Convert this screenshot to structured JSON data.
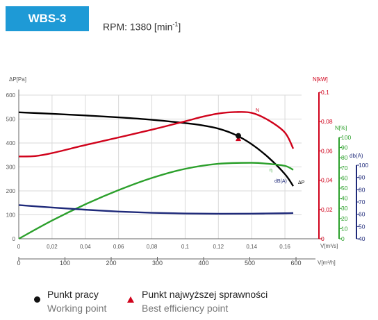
{
  "header": {
    "model": "WBS-3",
    "rpm_label": "RPM: 1380 [min",
    "rpm_sup": "-1",
    "rpm_close": "]"
  },
  "legend": {
    "working_pl": "Punkt pracy",
    "working_en": "Working point",
    "best_pl": "Punkt najwyższej sprawności",
    "best_en": "Best efficiency point"
  },
  "chart_data": {
    "type": "line",
    "x_flow_m3s": {
      "label": "V[m³/s]",
      "range": [
        0,
        0.17
      ],
      "ticks": [
        "0",
        "0,02",
        "0,04",
        "0,06",
        "0,08",
        "0,1",
        "0,12",
        "0,14",
        "0,16"
      ]
    },
    "x_flow_m3h": {
      "label": "V[m³/h]",
      "range": [
        0,
        612
      ],
      "ticks": [
        "0",
        "100",
        "200",
        "300",
        "400",
        "500",
        "600"
      ]
    },
    "axes": {
      "pressure": {
        "label": "ΔP[Pa]",
        "range": [
          0,
          600
        ],
        "ticks": [
          "0",
          "100",
          "200",
          "300",
          "400",
          "500",
          "600"
        ],
        "color": "#555555"
      },
      "power": {
        "label": "N[kW]",
        "range": [
          0,
          0.1
        ],
        "ticks": [
          "0",
          "0,02",
          "0,04",
          "0,06",
          "0,08",
          "0,1"
        ],
        "color": "#d0021b"
      },
      "efficiency": {
        "label": "N[%]",
        "range": [
          0,
          100
        ],
        "ticks": [
          "0",
          "10",
          "20",
          "30",
          "40",
          "50",
          "60",
          "70",
          "80",
          "90",
          "100"
        ],
        "color": "#2ca02c"
      },
      "noise": {
        "label": "db(A)",
        "range": [
          40,
          100
        ],
        "ticks": [
          "40",
          "50",
          "60",
          "70",
          "80",
          "90",
          "100"
        ],
        "color": "#1f2a7a"
      }
    },
    "grid": true,
    "series": [
      {
        "name": "ΔP",
        "axis": "pressure",
        "color": "#000000",
        "x": [
          0,
          0.02,
          0.04,
          0.06,
          0.08,
          0.1,
          0.11,
          0.12,
          0.13,
          0.14,
          0.15,
          0.16,
          0.165
        ],
        "y": [
          528,
          522,
          515,
          507,
          497,
          483,
          474,
          460,
          435,
          395,
          340,
          270,
          220
        ]
      },
      {
        "name": "N",
        "axis": "power",
        "color": "#d0021b",
        "x": [
          0,
          0.01,
          0.02,
          0.04,
          0.06,
          0.08,
          0.1,
          0.11,
          0.12,
          0.13,
          0.14,
          0.15,
          0.16,
          0.165
        ],
        "y": [
          0.0562,
          0.0565,
          0.0585,
          0.064,
          0.0692,
          0.0745,
          0.0802,
          0.0832,
          0.0855,
          0.0865,
          0.086,
          0.081,
          0.0725,
          0.0615
        ]
      },
      {
        "name": "η",
        "axis": "efficiency",
        "color": "#2ca02c",
        "x": [
          0,
          0.02,
          0.04,
          0.06,
          0.08,
          0.1,
          0.12,
          0.14,
          0.15,
          0.16,
          0.165
        ],
        "y": [
          0,
          18,
          34,
          48,
          60,
          69,
          74,
          75,
          74,
          72,
          68
        ]
      },
      {
        "name": "dB(A)",
        "axis": "noise",
        "color": "#1f2a7a",
        "x": [
          0,
          0.02,
          0.04,
          0.06,
          0.08,
          0.1,
          0.12,
          0.14,
          0.16,
          0.165
        ],
        "y": [
          67.5,
          65.5,
          63.7,
          62.2,
          61.2,
          60.6,
          60.4,
          60.5,
          60.8,
          61
        ]
      }
    ],
    "working_point": {
      "x": 0.132,
      "y": 430
    },
    "best_efficiency_point": {
      "x": 0.132,
      "y": 420
    }
  }
}
